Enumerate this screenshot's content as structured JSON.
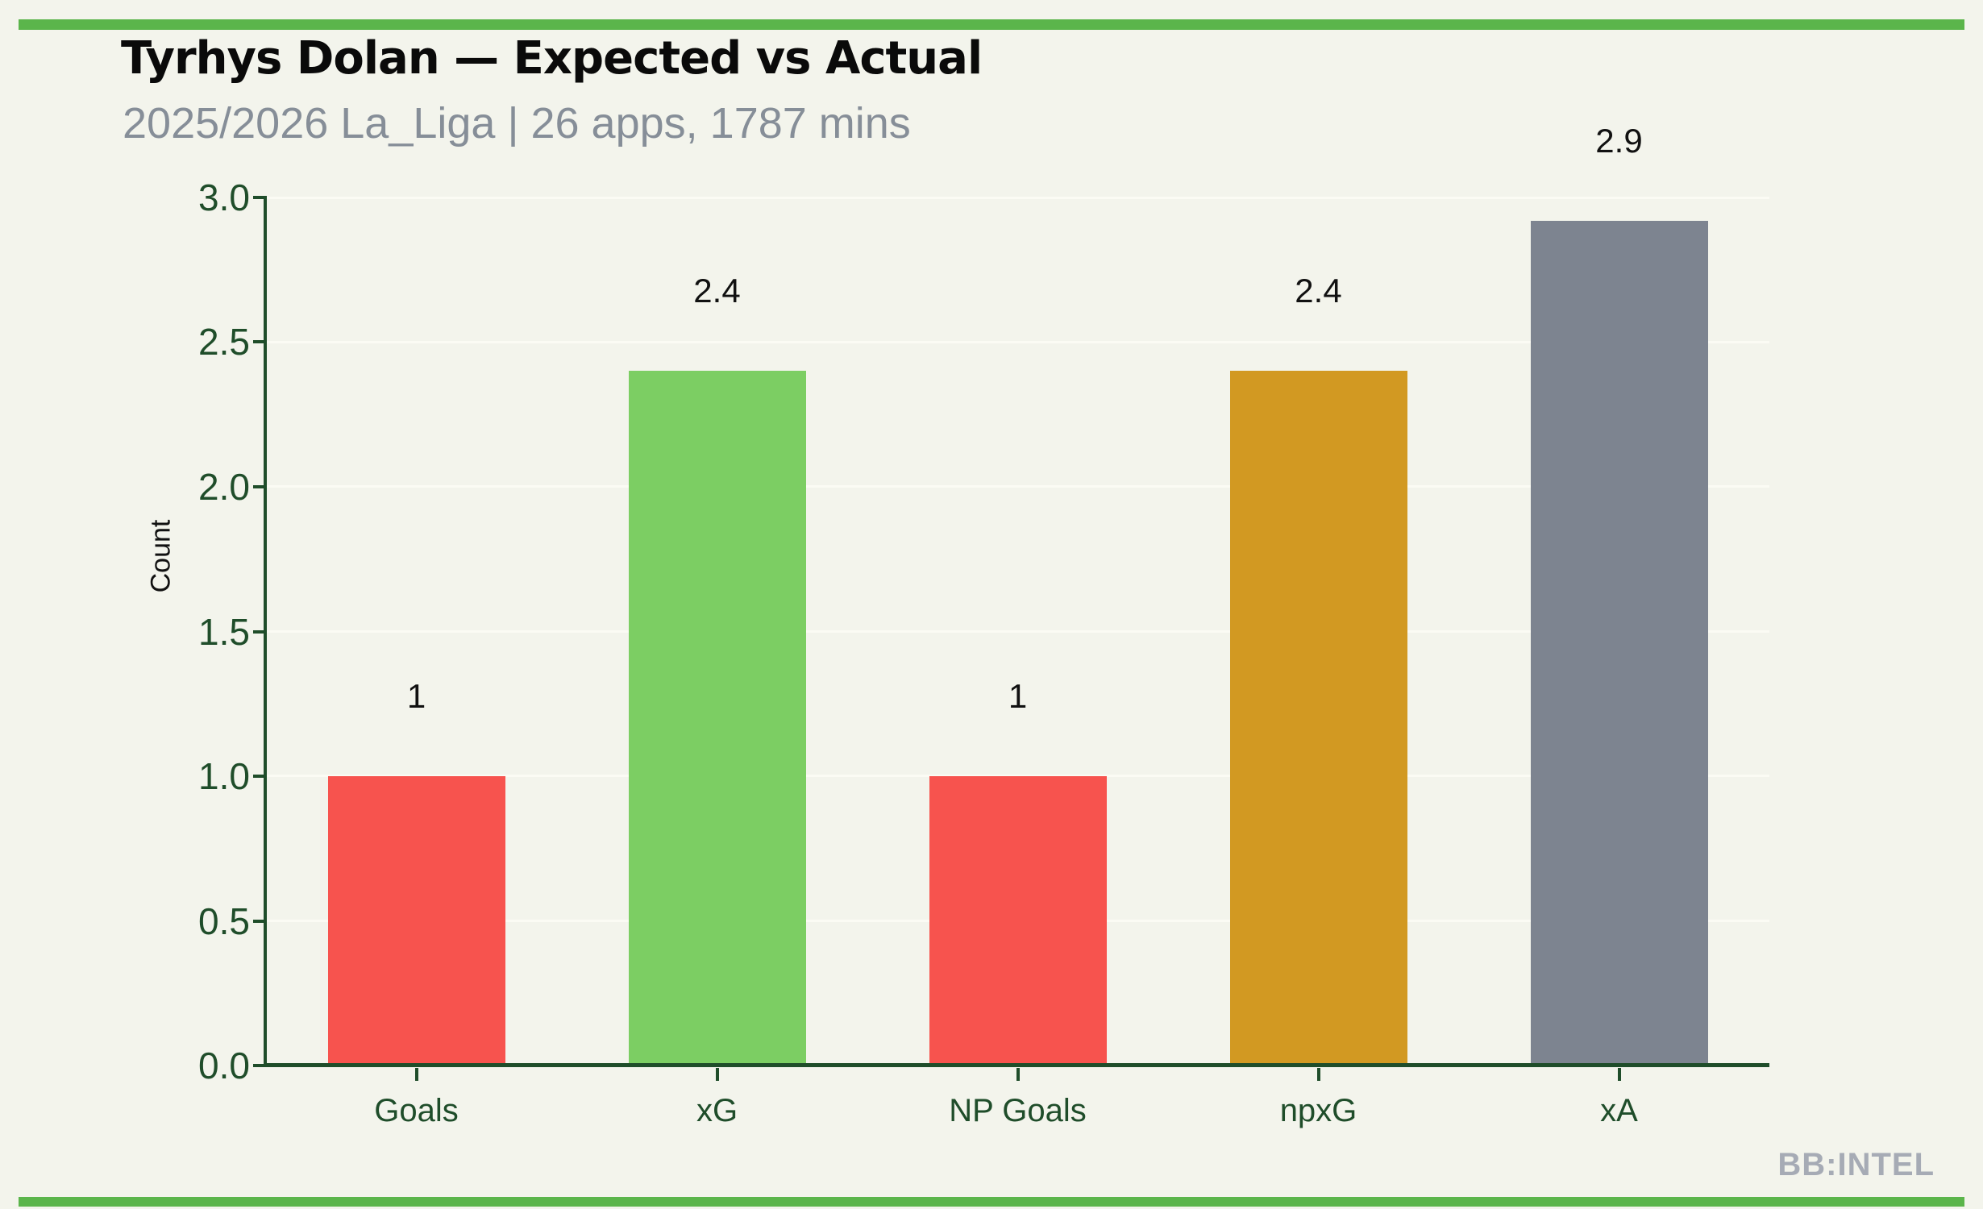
{
  "page": {
    "title": "Tyrhys Dolan — Expected vs Actual",
    "subtitle": "2025/2026 La_Liga | 26 apps, 1787 mins",
    "watermark": "BB:INTEL"
  },
  "colors": {
    "background": "#F3F4EC",
    "accent_green": "#5BB54B",
    "axis_green": "#1F4D2A",
    "title_black": "#0A0A0A",
    "subtitle_gray": "#868E98",
    "watermark_gray": "#A6ABB5",
    "gridline": "#FBFBF4"
  },
  "chart_data": {
    "type": "bar",
    "title": "Tyrhys Dolan — Expected vs Actual",
    "subtitle": "2025/2026 La_Liga | 26 apps, 1787 mins",
    "xlabel": "",
    "ylabel": "Count",
    "ylim": [
      0,
      3.0
    ],
    "yticks": [
      "0.0",
      "0.5",
      "1.0",
      "1.5",
      "2.0",
      "2.5",
      "3.0"
    ],
    "grid": true,
    "legend": false,
    "categories": [
      "Goals",
      "xG",
      "NP Goals",
      "npxG",
      "xA"
    ],
    "values": [
      1.0,
      2.4,
      1.0,
      2.4,
      2.92
    ],
    "value_labels": [
      "1",
      "2.4",
      "1",
      "2.4",
      "2.9"
    ],
    "bar_colors": [
      "#F7534E",
      "#7CCE63",
      "#F7534E",
      "#D29922",
      "#7D8490"
    ]
  }
}
